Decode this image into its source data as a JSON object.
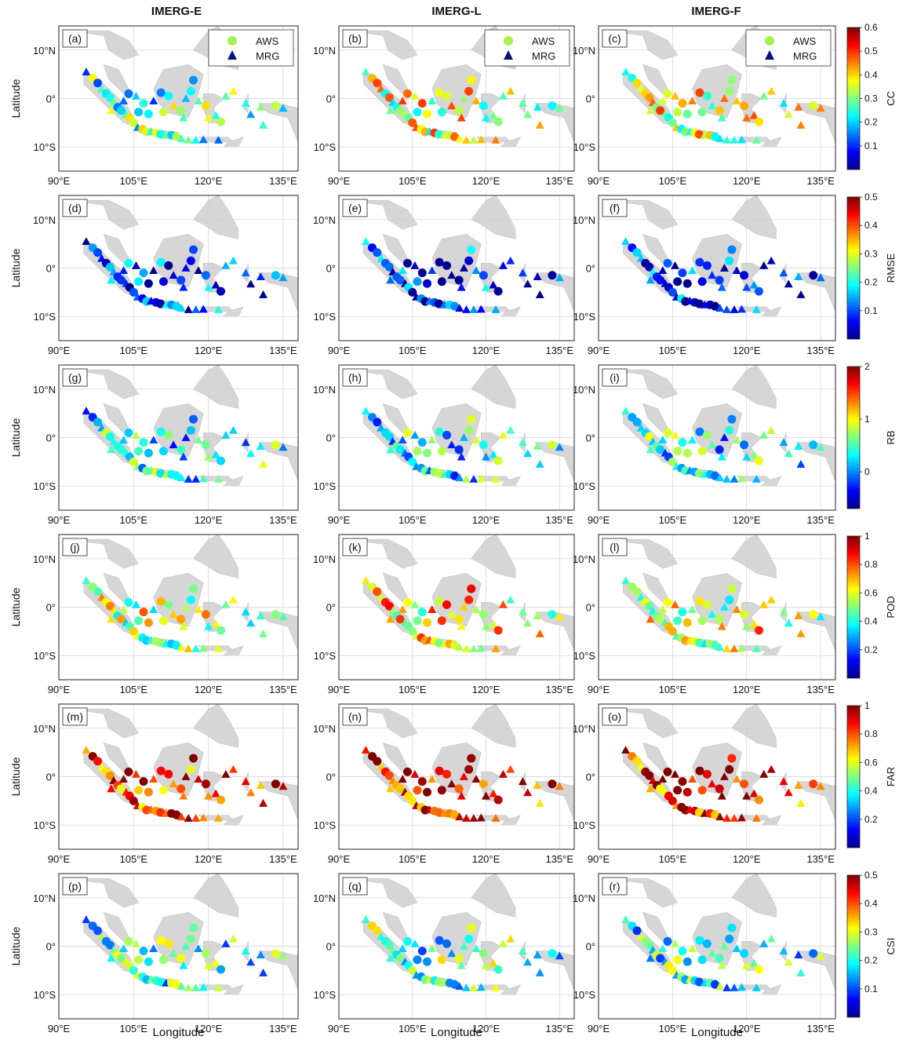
{
  "column_titles": [
    "IMERG-E",
    "IMERG-L",
    "IMERG-F"
  ],
  "panel_labels": [
    "(a)",
    "(b)",
    "(c)",
    "(d)",
    "(e)",
    "(f)",
    "(g)",
    "(h)",
    "(i)",
    "(j)",
    "(k)",
    "(l)",
    "(m)",
    "(n)",
    "(o)",
    "(p)",
    "(q)",
    "(r)"
  ],
  "axes": {
    "ylabel": "Latitude",
    "xlabel": "Longitude",
    "xticks": [
      "90°E",
      "105°E",
      "120°E",
      "135°E"
    ],
    "yticks": [
      "10°N",
      "0°",
      "10°S"
    ],
    "xlim": [
      90,
      138
    ],
    "ylim": [
      -15,
      15
    ],
    "grid": true
  },
  "legend": {
    "placement": "top-right of first-row panels",
    "entries": [
      {
        "label": "AWS",
        "marker": "circle",
        "color": "#a8f050"
      },
      {
        "label": "MRG",
        "marker": "triangle",
        "color": "#0a1080"
      }
    ]
  },
  "colormap": [
    "#00008f",
    "#0000ff",
    "#0080ff",
    "#00ffff",
    "#80ff80",
    "#ffff00",
    "#ff8000",
    "#ff0000",
    "#800000"
  ],
  "chart_data": [
    {
      "type": "scatter",
      "metric": "CC",
      "colorbar_ticks": [
        "0.6",
        "0.5",
        "0.4",
        "0.3",
        "0.2",
        "0.1"
      ],
      "cmin": 0,
      "cmax": 0.6,
      "row_values": [
        0.25,
        0.35,
        0.35
      ]
    },
    {
      "type": "scatter",
      "metric": "RMSE",
      "colorbar_ticks": [
        "0.5",
        "0.4",
        "0.3",
        "0.2",
        "0.1"
      ],
      "cmin": 0,
      "cmax": 0.5,
      "row_values": [
        0.08,
        0.07,
        0.07
      ]
    },
    {
      "type": "scatter",
      "metric": "RB",
      "colorbar_ticks": [
        "2",
        "1",
        "0"
      ],
      "cmin": -0.7,
      "cmax": 2,
      "row_values": [
        0.3,
        0.35,
        0.3
      ]
    },
    {
      "type": "scatter",
      "metric": "POD",
      "colorbar_ticks": [
        "1",
        "0.8",
        "0.6",
        "0.4",
        "0.2"
      ],
      "cmin": 0,
      "cmax": 1,
      "row_values": [
        0.55,
        0.65,
        0.6
      ]
    },
    {
      "type": "scatter",
      "metric": "FAR",
      "colorbar_ticks": [
        "1",
        "0.8",
        "0.6",
        "0.4",
        "0.2"
      ],
      "cmin": 0,
      "cmax": 1,
      "row_values": [
        0.85,
        0.88,
        0.86
      ]
    },
    {
      "type": "scatter",
      "metric": "CSI",
      "colorbar_ticks": [
        "0.5",
        "0.4",
        "0.3",
        "0.2",
        "0.1"
      ],
      "cmin": 0,
      "cmax": 0.5,
      "row_values": [
        0.2,
        0.22,
        0.2
      ]
    }
  ]
}
